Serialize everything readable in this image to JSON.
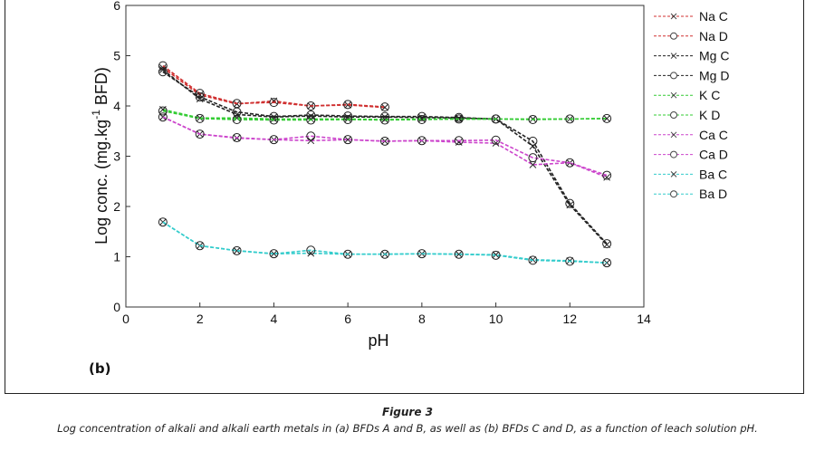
{
  "chart_data": {
    "type": "line",
    "panel_label": "(b)",
    "title": "",
    "xlabel": "pH",
    "ylabel_main": "Log conc. (mg.kg",
    "ylabel_sup": "-1",
    "ylabel_tail": " BFD)",
    "xlim": [
      0,
      14
    ],
    "ylim": [
      0,
      6
    ],
    "xticks": [
      "0",
      "2",
      "4",
      "6",
      "8",
      "10",
      "12",
      "14"
    ],
    "yticks": [
      "0",
      "1",
      "2",
      "3",
      "4",
      "5",
      "6"
    ],
    "grid": false,
    "legend_position": "right-outside",
    "series": [
      {
        "name": "Na C",
        "color": "#d03030",
        "marker": "x",
        "x": [
          1,
          2,
          3,
          4,
          5,
          6,
          7
        ],
        "y": [
          4.76,
          4.22,
          4.04,
          4.1,
          4.0,
          4.02,
          3.97
        ]
      },
      {
        "name": "Na D",
        "color": "#d03030",
        "marker": "o",
        "x": [
          1,
          2,
          3,
          4,
          5,
          6,
          7
        ],
        "y": [
          4.8,
          4.25,
          4.05,
          4.07,
          4.0,
          4.03,
          3.98
        ]
      },
      {
        "name": "Mg C",
        "color": "#222222",
        "marker": "x",
        "x": [
          1,
          2,
          3,
          4,
          5,
          6,
          7,
          8,
          9,
          10,
          11,
          12,
          13
        ],
        "y": [
          4.72,
          4.14,
          3.83,
          3.78,
          3.8,
          3.78,
          3.78,
          3.77,
          3.76,
          3.74,
          3.2,
          2.03,
          1.24
        ]
      },
      {
        "name": "Mg D",
        "color": "#222222",
        "marker": "o",
        "x": [
          1,
          2,
          3,
          4,
          5,
          6,
          7,
          8,
          9,
          10,
          11,
          12,
          13
        ],
        "y": [
          4.68,
          4.18,
          3.88,
          3.79,
          3.82,
          3.8,
          3.79,
          3.79,
          3.77,
          3.74,
          3.3,
          2.06,
          1.26
        ]
      },
      {
        "name": "K C",
        "color": "#33cc33",
        "marker": "x",
        "x": [
          1,
          2,
          3,
          4,
          5,
          6,
          7,
          8,
          9,
          10,
          11,
          12,
          13
        ],
        "y": [
          3.93,
          3.76,
          3.76,
          3.74,
          3.74,
          3.74,
          3.73,
          3.74,
          3.74,
          3.74,
          3.74,
          3.74,
          3.75
        ]
      },
      {
        "name": "K D",
        "color": "#33cc33",
        "marker": "o",
        "x": [
          1,
          2,
          3,
          4,
          5,
          6,
          7,
          8,
          9,
          10,
          11,
          12,
          13
        ],
        "y": [
          3.9,
          3.75,
          3.73,
          3.72,
          3.72,
          3.73,
          3.72,
          3.73,
          3.74,
          3.74,
          3.73,
          3.74,
          3.75
        ]
      },
      {
        "name": "Ca C",
        "color": "#cc44cc",
        "marker": "x",
        "x": [
          1,
          2,
          3,
          4,
          5,
          6,
          7,
          8,
          9,
          10,
          11,
          12,
          13
        ],
        "y": [
          3.78,
          3.44,
          3.36,
          3.33,
          3.31,
          3.33,
          3.3,
          3.31,
          3.28,
          3.26,
          2.83,
          2.87,
          2.58
        ]
      },
      {
        "name": "Ca D",
        "color": "#cc44cc",
        "marker": "o",
        "x": [
          1,
          2,
          3,
          4,
          5,
          6,
          7,
          8,
          9,
          10,
          11,
          12,
          13
        ],
        "y": [
          3.78,
          3.44,
          3.37,
          3.33,
          3.4,
          3.33,
          3.3,
          3.31,
          3.31,
          3.32,
          2.97,
          2.87,
          2.62
        ]
      },
      {
        "name": "Ba C",
        "color": "#33cccc",
        "marker": "x",
        "x": [
          1,
          2,
          3,
          4,
          5,
          6,
          7,
          8,
          9,
          10,
          11,
          12,
          13
        ],
        "y": [
          1.69,
          1.22,
          1.12,
          1.06,
          1.07,
          1.05,
          1.05,
          1.06,
          1.05,
          1.04,
          0.94,
          0.92,
          0.88
        ]
      },
      {
        "name": "Ba D",
        "color": "#33cccc",
        "marker": "o",
        "x": [
          1,
          2,
          3,
          4,
          5,
          6,
          7,
          8,
          9,
          10,
          11,
          12,
          13
        ],
        "y": [
          1.69,
          1.22,
          1.12,
          1.06,
          1.13,
          1.05,
          1.05,
          1.06,
          1.05,
          1.03,
          0.93,
          0.91,
          0.88
        ]
      }
    ]
  },
  "caption": {
    "title": "Figure 3",
    "text": "Log concentration of alkali and alkali earth metals in (a) BFDs A and B, as well as (b) BFDs C and D, as a function of leach solution pH."
  }
}
